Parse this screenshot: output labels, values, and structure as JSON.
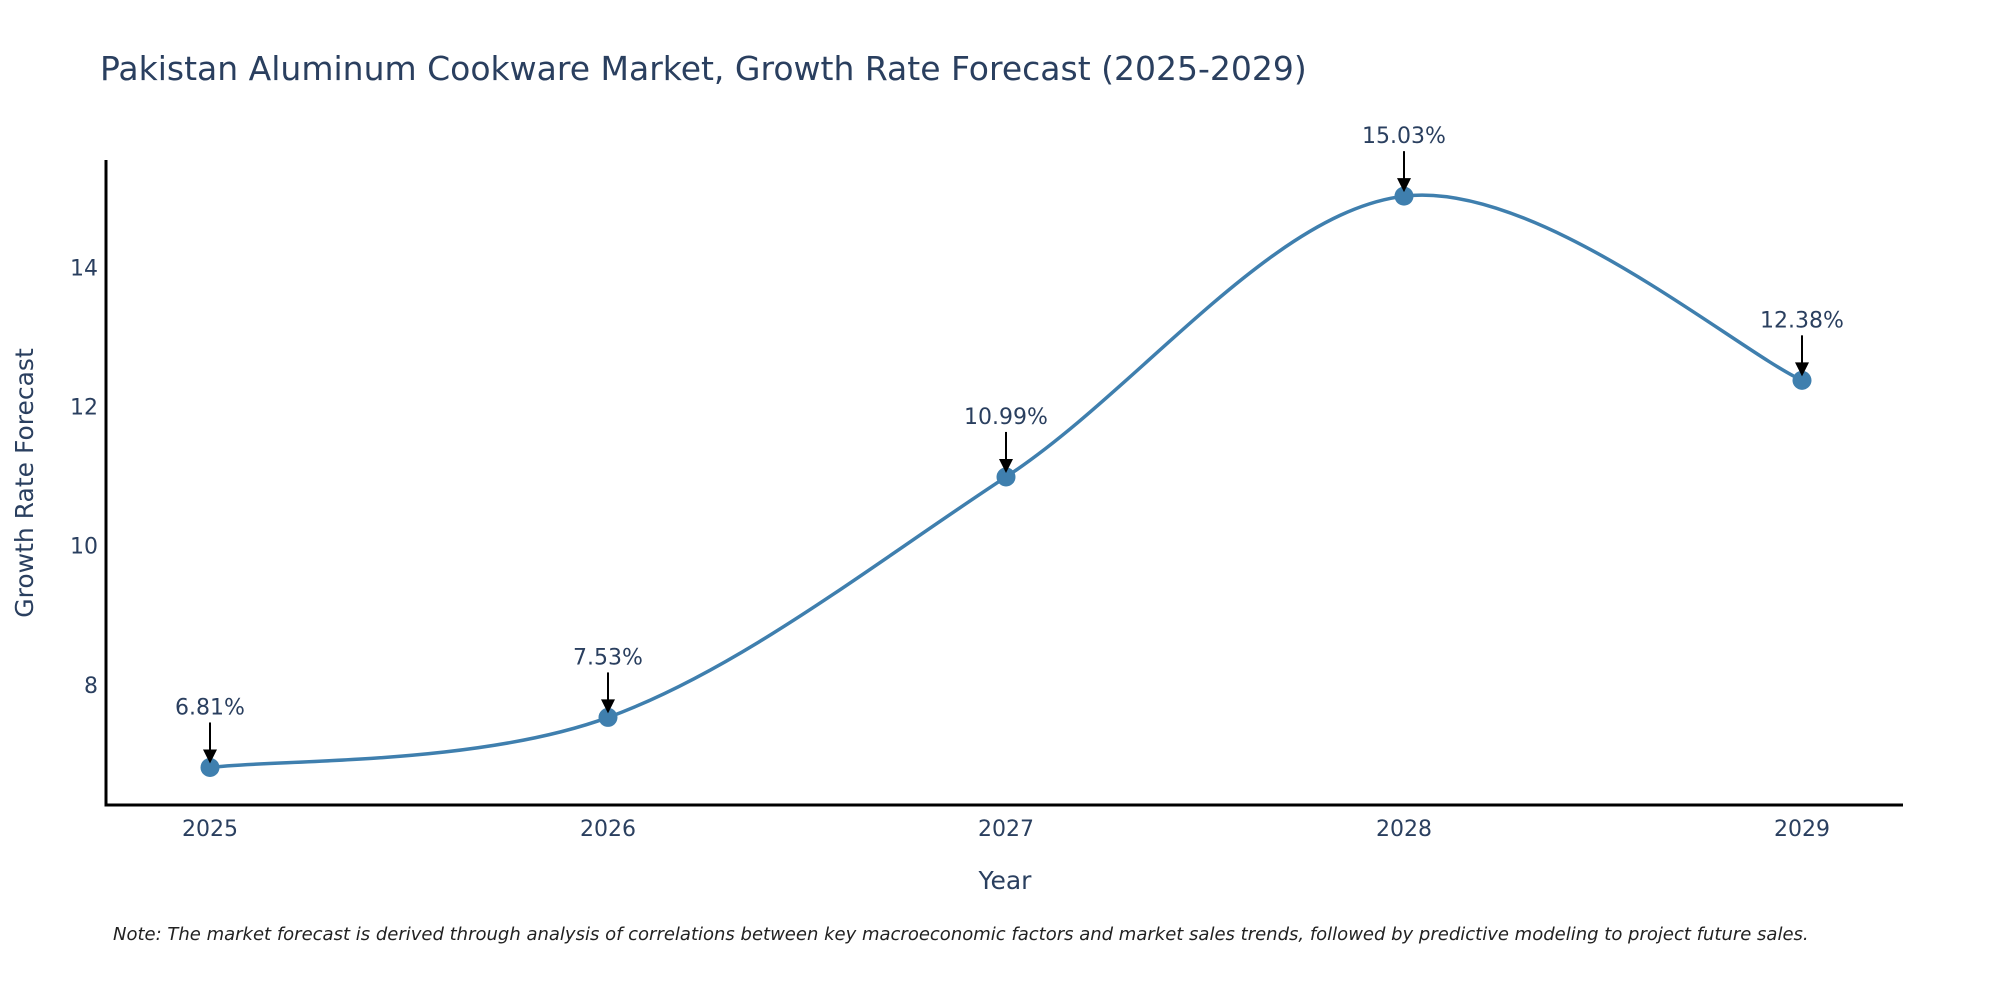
{
  "chart_data": {
    "type": "line",
    "title": "Pakistan Aluminum Cookware Market, Growth Rate Forecast (2025-2029)",
    "xlabel": "Year",
    "ylabel": "Growth Rate Forecast",
    "categories": [
      "2025",
      "2026",
      "2027",
      "2028",
      "2029"
    ],
    "values": [
      6.81,
      7.53,
      10.99,
      15.03,
      12.38
    ],
    "data_labels": [
      "6.81%",
      "7.53%",
      "10.99%",
      "15.03%",
      "12.38%"
    ],
    "y_ticks": [
      8,
      10,
      12,
      14
    ],
    "ylim": [
      6.27,
      15.55
    ],
    "grid": false,
    "line_shape": "spline",
    "line_color": "#3f7fae",
    "marker_color": "#3f7fae",
    "arrow_color": "#000000",
    "note": "Note: The market forecast is derived through analysis of correlations between key macroeconomic factors and market sales trends, followed by predictive modeling to project future sales."
  }
}
